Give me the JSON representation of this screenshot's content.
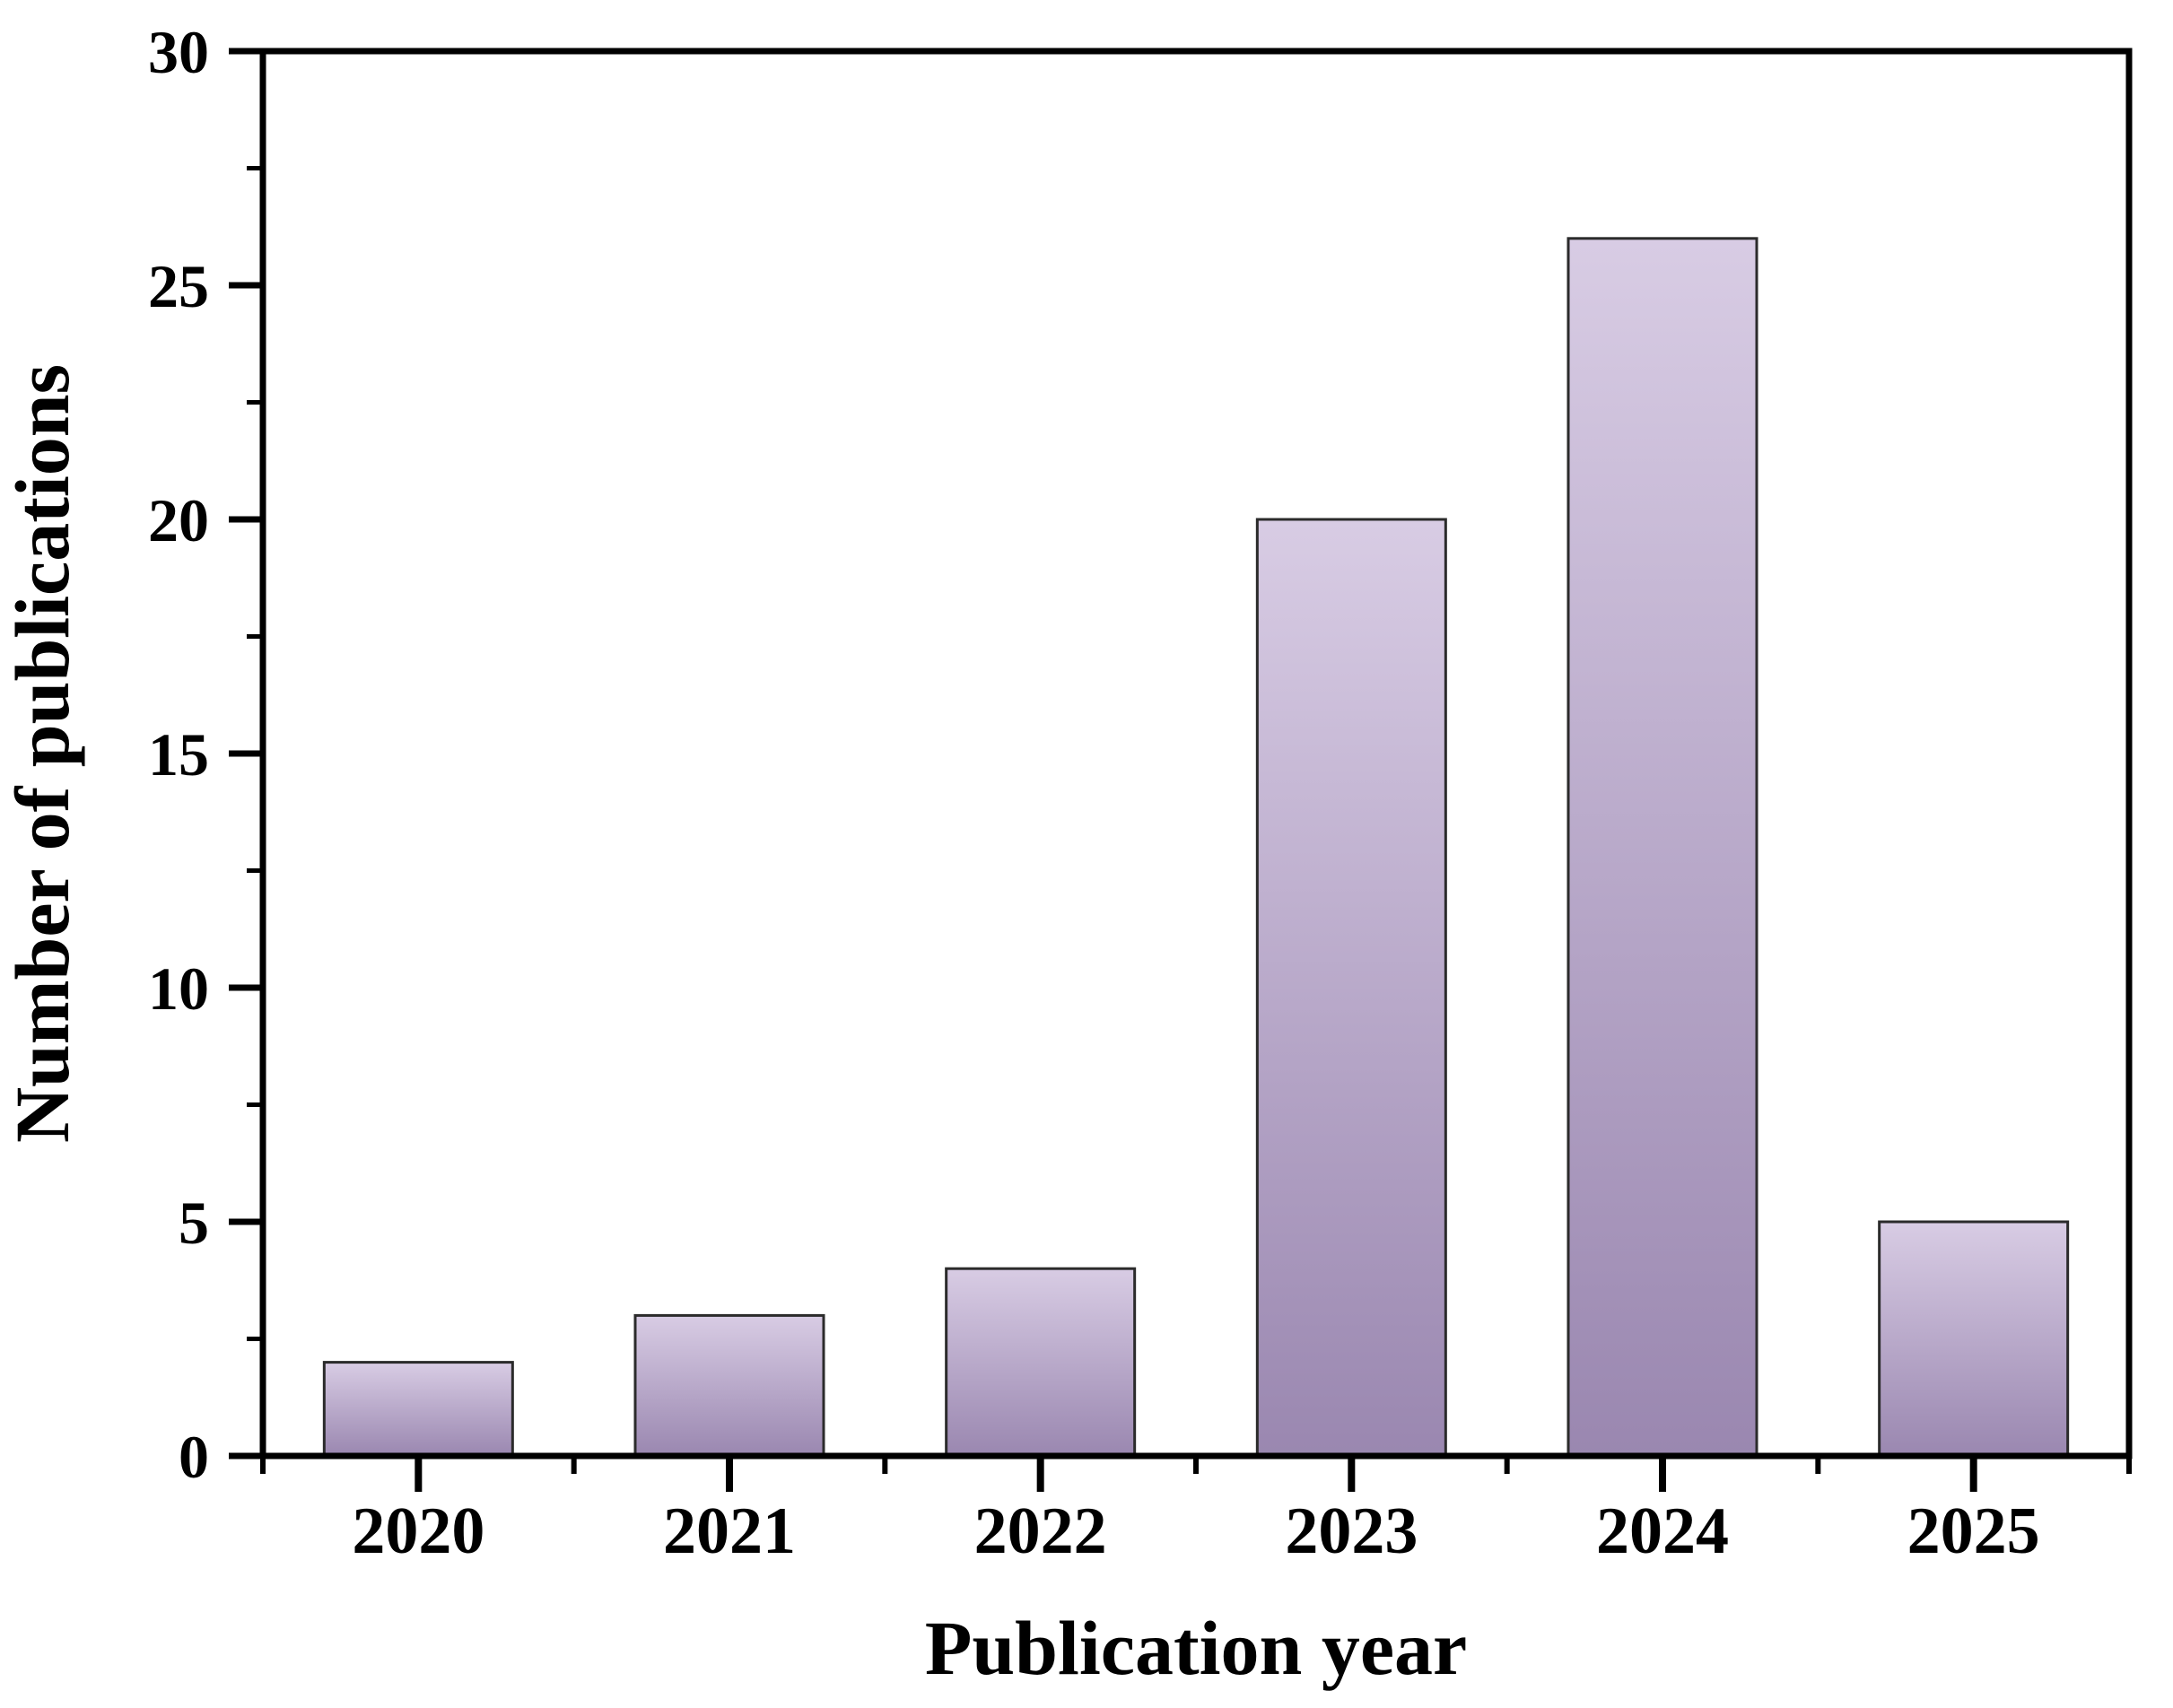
{
  "figure": {
    "background": "#ffffff"
  },
  "chart_data": {
    "type": "bar",
    "categories": [
      "2020",
      "2021",
      "2022",
      "2023",
      "2024",
      "2025"
    ],
    "values": [
      2,
      3,
      4,
      20,
      26,
      5
    ],
    "title": "",
    "xlabel": "Publication year",
    "ylabel": "Number of publications",
    "ylim": [
      0,
      30
    ],
    "yticks": [
      0,
      5,
      10,
      15,
      20,
      25,
      30
    ],
    "ytick_labels": [
      "0",
      "5",
      "10",
      "15",
      "20",
      "25",
      "30"
    ],
    "y_minor_step": 2.5,
    "grid": false,
    "legend": "none",
    "frame": "full-box",
    "tick_direction": "out",
    "colors": {
      "bar_gradient_top": "#d8cce4",
      "bar_gradient_bottom": "#9a87b0",
      "bar_border": "#2b2b2b",
      "axis": "#000000",
      "text": "#000000",
      "background": "#ffffff"
    }
  }
}
